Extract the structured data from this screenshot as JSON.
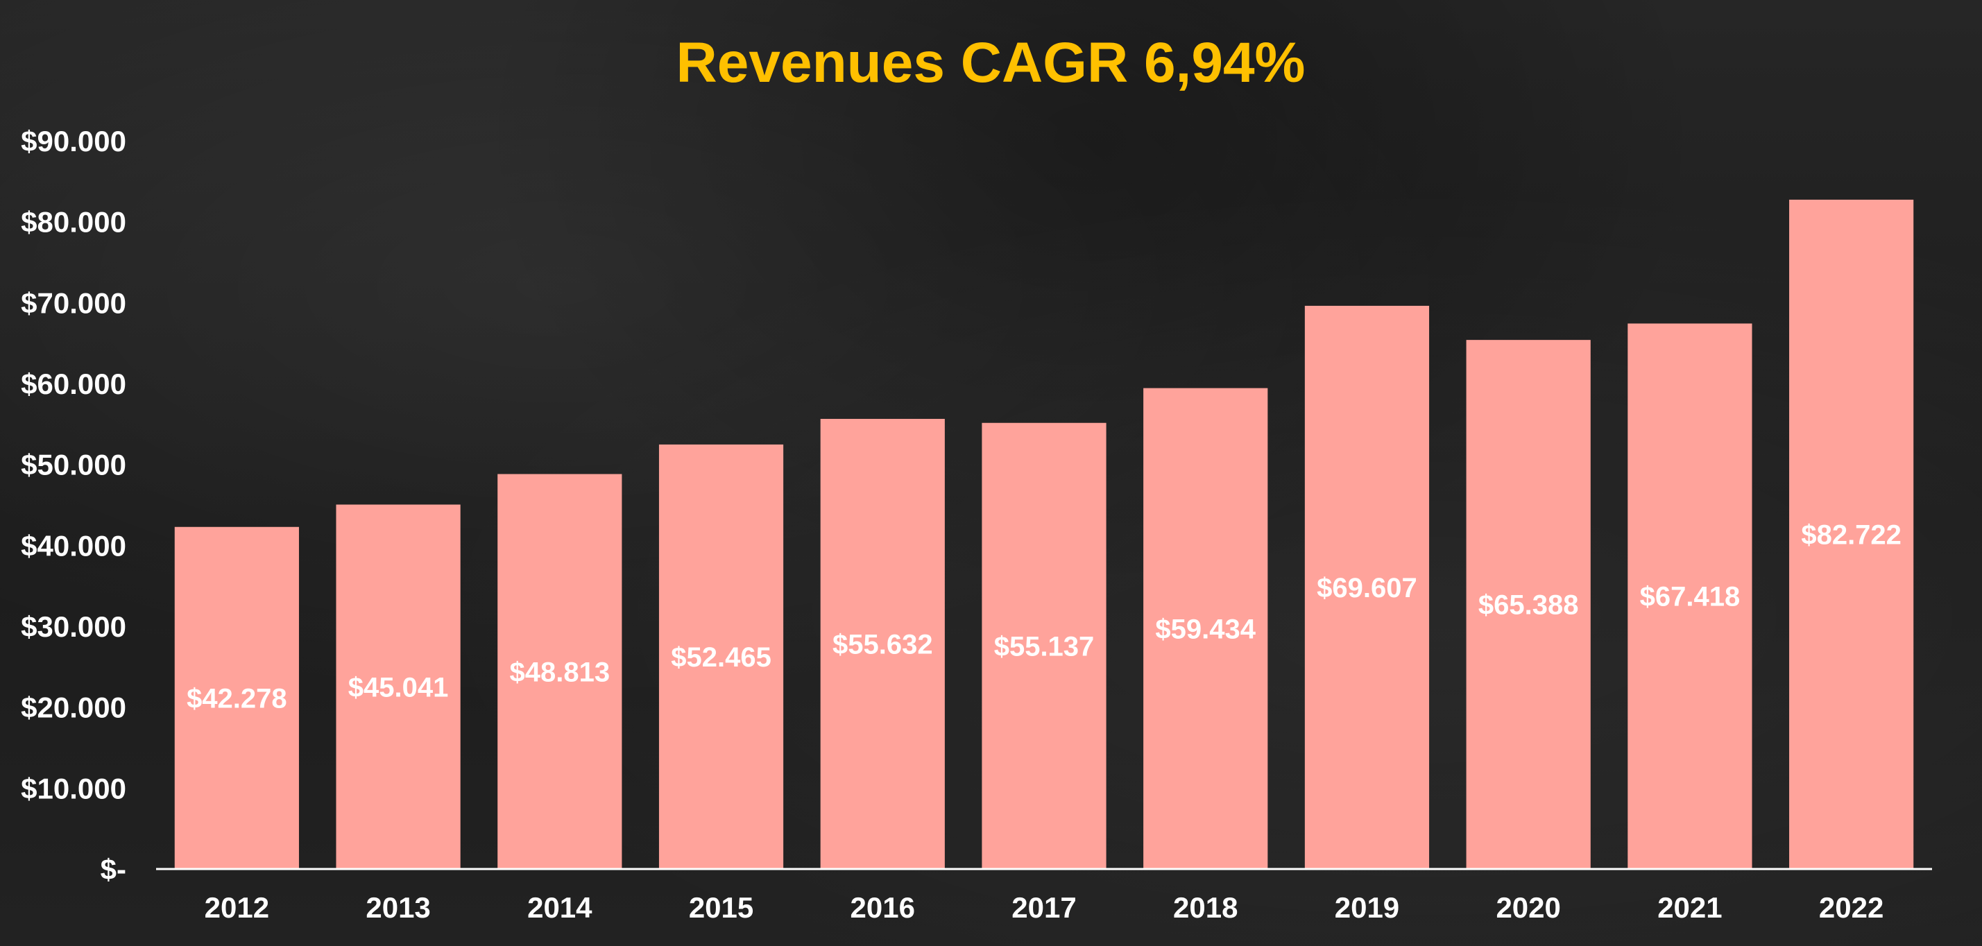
{
  "chart_data": {
    "type": "bar",
    "title": "Revenues CAGR 6,94%",
    "xlabel": "",
    "ylabel": "",
    "categories": [
      "2012",
      "2013",
      "2014",
      "2015",
      "2016",
      "2017",
      "2018",
      "2019",
      "2020",
      "2021",
      "2022"
    ],
    "values": [
      42278,
      45041,
      48813,
      52465,
      55632,
      55137,
      59434,
      69607,
      65388,
      67418,
      82722
    ],
    "data_labels": [
      "$42.278",
      "$45.041",
      "$48.813",
      "$52.465",
      "$55.632",
      "$55.137",
      "$59.434",
      "$69.607",
      "$65.388",
      "$67.418",
      "$82.722"
    ],
    "ylim": [
      0,
      90000
    ],
    "yticks": [
      0,
      10000,
      20000,
      30000,
      40000,
      50000,
      60000,
      70000,
      80000,
      90000
    ],
    "ytick_labels": [
      "$-",
      "$10.000",
      "$20.000",
      "$30.000",
      "$40.000",
      "$50.000",
      "$60.000",
      "$70.000",
      "$80.000",
      "$90.000"
    ],
    "grid": false,
    "legend": "none",
    "colors": {
      "bar": "#ffa39b",
      "title": "#ffc000",
      "text": "#ffffff",
      "axis": "#ffffff",
      "background": "#1e1e1e"
    }
  }
}
